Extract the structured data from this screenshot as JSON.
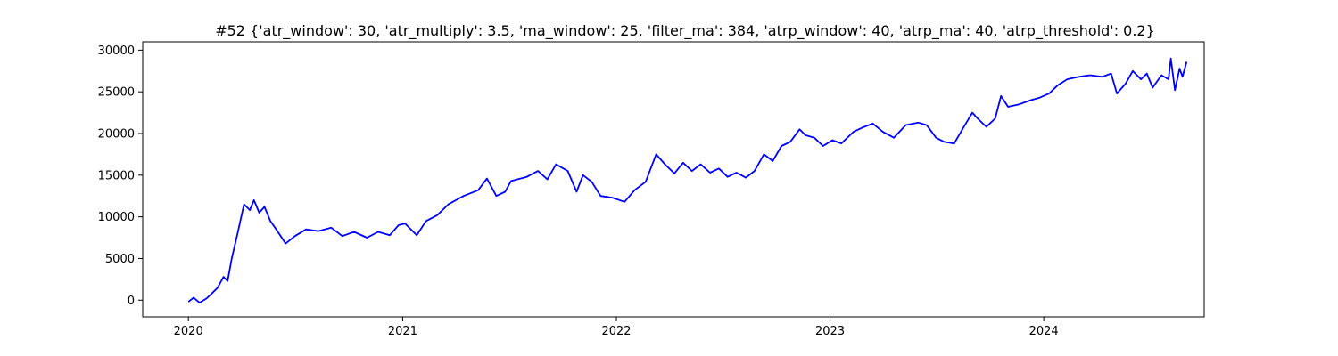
{
  "chart_data": {
    "type": "line",
    "title": "#52 {'atr_window': 30, 'atr_multiply': 3.5, 'ma_window': 25, 'filter_ma': 384, 'atrp_window': 40, 'atrp_ma': 40, 'atrp_threshold': 0.2}",
    "xlabel": "",
    "ylabel": "",
    "xlim": [
      "2019-10-15",
      "2024-10-01"
    ],
    "ylim": [
      -2000,
      31000
    ],
    "x_ticks": [
      {
        "value": "2020-01-01",
        "label": "2020"
      },
      {
        "value": "2021-01-01",
        "label": "2021"
      },
      {
        "value": "2022-01-01",
        "label": "2022"
      },
      {
        "value": "2023-01-01",
        "label": "2023"
      },
      {
        "value": "2024-01-01",
        "label": "2024"
      }
    ],
    "y_ticks": [
      {
        "value": 0,
        "label": "0"
      },
      {
        "value": 5000,
        "label": "5000"
      },
      {
        "value": 10000,
        "label": "10000"
      },
      {
        "value": 15000,
        "label": "15000"
      },
      {
        "value": 20000,
        "label": "20000"
      },
      {
        "value": 25000,
        "label": "25000"
      },
      {
        "value": 30000,
        "label": "30000"
      }
    ],
    "grid": false,
    "series": [
      {
        "color": "#0000ff",
        "points": [
          [
            "2020-01-01",
            -200
          ],
          [
            "2020-01-10",
            300
          ],
          [
            "2020-01-20",
            -300
          ],
          [
            "2020-02-01",
            200
          ],
          [
            "2020-02-10",
            800
          ],
          [
            "2020-02-20",
            1500
          ],
          [
            "2020-03-01",
            2800
          ],
          [
            "2020-03-08",
            2300
          ],
          [
            "2020-03-15",
            5000
          ],
          [
            "2020-03-25",
            8000
          ],
          [
            "2020-04-05",
            11500
          ],
          [
            "2020-04-15",
            10800
          ],
          [
            "2020-04-22",
            12000
          ],
          [
            "2020-05-01",
            10500
          ],
          [
            "2020-05-10",
            11200
          ],
          [
            "2020-05-20",
            9500
          ],
          [
            "2020-06-01",
            8300
          ],
          [
            "2020-06-15",
            6800
          ],
          [
            "2020-07-01",
            7700
          ],
          [
            "2020-07-20",
            8500
          ],
          [
            "2020-08-10",
            8300
          ],
          [
            "2020-09-01",
            8700
          ],
          [
            "2020-09-20",
            7700
          ],
          [
            "2020-10-10",
            8200
          ],
          [
            "2020-11-01",
            7500
          ],
          [
            "2020-11-20",
            8200
          ],
          [
            "2020-12-10",
            7800
          ],
          [
            "2020-12-25",
            9000
          ],
          [
            "2021-01-05",
            9200
          ],
          [
            "2021-01-25",
            7800
          ],
          [
            "2021-02-10",
            9500
          ],
          [
            "2021-03-01",
            10200
          ],
          [
            "2021-03-20",
            11500
          ],
          [
            "2021-04-15",
            12500
          ],
          [
            "2021-05-10",
            13200
          ],
          [
            "2021-05-25",
            14600
          ],
          [
            "2021-06-10",
            12500
          ],
          [
            "2021-06-25",
            13000
          ],
          [
            "2021-07-05",
            14300
          ],
          [
            "2021-08-01",
            14800
          ],
          [
            "2021-08-20",
            15500
          ],
          [
            "2021-09-05",
            14500
          ],
          [
            "2021-09-20",
            16300
          ],
          [
            "2021-10-10",
            15500
          ],
          [
            "2021-10-25",
            13000
          ],
          [
            "2021-11-05",
            15000
          ],
          [
            "2021-11-20",
            14200
          ],
          [
            "2021-12-05",
            12500
          ],
          [
            "2021-12-25",
            12300
          ],
          [
            "2022-01-15",
            11800
          ],
          [
            "2022-02-01",
            13200
          ],
          [
            "2022-02-20",
            14200
          ],
          [
            "2022-03-10",
            17500
          ],
          [
            "2022-03-25",
            16300
          ],
          [
            "2022-04-10",
            15200
          ],
          [
            "2022-04-25",
            16500
          ],
          [
            "2022-05-10",
            15500
          ],
          [
            "2022-05-25",
            16300
          ],
          [
            "2022-06-10",
            15300
          ],
          [
            "2022-06-25",
            15800
          ],
          [
            "2022-07-10",
            14800
          ],
          [
            "2022-07-25",
            15300
          ],
          [
            "2022-08-10",
            14700
          ],
          [
            "2022-08-25",
            15500
          ],
          [
            "2022-09-10",
            17500
          ],
          [
            "2022-09-25",
            16700
          ],
          [
            "2022-10-10",
            18500
          ],
          [
            "2022-10-25",
            19000
          ],
          [
            "2022-11-10",
            20500
          ],
          [
            "2022-11-20",
            19800
          ],
          [
            "2022-12-05",
            19500
          ],
          [
            "2022-12-20",
            18500
          ],
          [
            "2023-01-05",
            19200
          ],
          [
            "2023-01-20",
            18800
          ],
          [
            "2023-02-10",
            20200
          ],
          [
            "2023-02-25",
            20700
          ],
          [
            "2023-03-15",
            21200
          ],
          [
            "2023-04-01",
            20200
          ],
          [
            "2023-04-20",
            19500
          ],
          [
            "2023-05-10",
            21000
          ],
          [
            "2023-06-01",
            21300
          ],
          [
            "2023-06-15",
            21000
          ],
          [
            "2023-07-01",
            19500
          ],
          [
            "2023-07-15",
            19000
          ],
          [
            "2023-08-01",
            18800
          ],
          [
            "2023-08-15",
            20500
          ],
          [
            "2023-09-01",
            22500
          ],
          [
            "2023-09-10",
            21800
          ],
          [
            "2023-09-25",
            20800
          ],
          [
            "2023-10-10",
            21800
          ],
          [
            "2023-10-20",
            24500
          ],
          [
            "2023-11-01",
            23200
          ],
          [
            "2023-11-20",
            23500
          ],
          [
            "2023-12-10",
            24000
          ],
          [
            "2023-12-25",
            24300
          ],
          [
            "2024-01-10",
            24800
          ],
          [
            "2024-01-25",
            25800
          ],
          [
            "2024-02-10",
            26500
          ],
          [
            "2024-03-01",
            26800
          ],
          [
            "2024-03-20",
            27000
          ],
          [
            "2024-04-10",
            26800
          ],
          [
            "2024-04-25",
            27200
          ],
          [
            "2024-05-05",
            24800
          ],
          [
            "2024-05-20",
            26000
          ],
          [
            "2024-06-01",
            27500
          ],
          [
            "2024-06-15",
            26500
          ],
          [
            "2024-06-25",
            27200
          ],
          [
            "2024-07-05",
            25500
          ],
          [
            "2024-07-20",
            27000
          ],
          [
            "2024-08-01",
            26500
          ],
          [
            "2024-08-05",
            29000
          ],
          [
            "2024-08-12",
            25200
          ],
          [
            "2024-08-20",
            27800
          ],
          [
            "2024-08-25",
            26800
          ],
          [
            "2024-09-01",
            28600
          ]
        ]
      }
    ]
  }
}
